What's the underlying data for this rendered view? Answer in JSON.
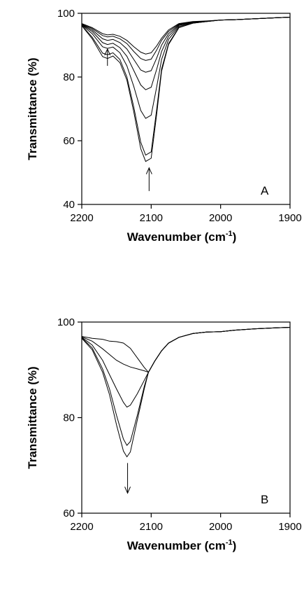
{
  "chart_data": [
    {
      "type": "line",
      "panel_label": "A",
      "xlabel_main": "Wavenumber (cm",
      "xlabel_sup": "-1",
      "xlabel_end": ")",
      "ylabel": "Transmittance (%)",
      "xlim": [
        2200,
        1900
      ],
      "ylim": [
        40,
        100
      ],
      "x_ticks": [
        2200,
        2100,
        2000,
        1900
      ],
      "y_ticks": [
        40,
        60,
        80,
        100
      ],
      "series": [
        {
          "x": [
            2200,
            2185,
            2170,
            2163,
            2155,
            2145,
            2135,
            2125,
            2115,
            2108,
            2100,
            2092,
            2085,
            2075,
            2060,
            2040,
            2020,
            2000,
            1980,
            1950,
            1920,
            1900
          ],
          "y": [
            96.8,
            95.5,
            93.6,
            93.2,
            93.4,
            92.8,
            91.5,
            89.5,
            87.8,
            87.2,
            87.6,
            89.8,
            92.2,
            94.8,
            96.8,
            97.4,
            97.6,
            97.9,
            98.0,
            98.3,
            98.6,
            98.8
          ]
        },
        {
          "x": [
            2200,
            2185,
            2170,
            2163,
            2155,
            2145,
            2135,
            2125,
            2115,
            2108,
            2100,
            2092,
            2085,
            2075,
            2060,
            2040,
            2020,
            2000,
            1980,
            1950,
            1920,
            1900
          ],
          "y": [
            96.6,
            95.2,
            93.0,
            92.6,
            92.8,
            92.0,
            90.5,
            88.0,
            85.8,
            85.2,
            85.6,
            88.5,
            91.5,
            94.3,
            96.6,
            97.3,
            97.5,
            97.9,
            98.0,
            98.3,
            98.6,
            98.8
          ]
        },
        {
          "x": [
            2200,
            2185,
            2170,
            2163,
            2155,
            2145,
            2135,
            2125,
            2115,
            2108,
            2100,
            2092,
            2085,
            2075,
            2060,
            2040,
            2020,
            2000,
            1980,
            1950,
            1920,
            1900
          ],
          "y": [
            96.5,
            94.8,
            92.0,
            91.5,
            91.8,
            90.8,
            88.8,
            85.5,
            82.2,
            81.5,
            82.0,
            86.0,
            90.0,
            93.6,
            96.4,
            97.2,
            97.5,
            97.9,
            98.0,
            98.3,
            98.6,
            98.8
          ]
        },
        {
          "x": [
            2200,
            2185,
            2170,
            2163,
            2155,
            2145,
            2135,
            2125,
            2115,
            2108,
            2100,
            2092,
            2085,
            2075,
            2060,
            2040,
            2020,
            2000,
            1980,
            1950,
            1920,
            1900
          ],
          "y": [
            96.4,
            94.3,
            90.8,
            90.2,
            90.6,
            89.2,
            86.5,
            82.0,
            77.5,
            76.0,
            76.8,
            82.5,
            88.0,
            92.8,
            96.2,
            97.1,
            97.5,
            97.9,
            98.0,
            98.3,
            98.6,
            98.8
          ]
        },
        {
          "x": [
            2200,
            2185,
            2170,
            2163,
            2155,
            2145,
            2135,
            2125,
            2115,
            2108,
            2100,
            2092,
            2085,
            2075,
            2060,
            2040,
            2020,
            2000,
            1980,
            1950,
            1920,
            1900
          ],
          "y": [
            96.3,
            93.6,
            89.5,
            89.0,
            89.4,
            87.6,
            83.5,
            77.0,
            69.5,
            67.0,
            68.0,
            77.0,
            85.5,
            91.8,
            95.9,
            97.0,
            97.4,
            97.9,
            98.0,
            98.3,
            98.6,
            98.8
          ]
        },
        {
          "x": [
            2200,
            2185,
            2170,
            2163,
            2155,
            2145,
            2135,
            2125,
            2115,
            2108,
            2100,
            2092,
            2085,
            2075,
            2060,
            2040,
            2020,
            2000,
            1980,
            1950,
            1920,
            1900
          ],
          "y": [
            96.2,
            92.5,
            87.5,
            87.0,
            87.6,
            85.5,
            80.0,
            70.5,
            59.5,
            55.5,
            56.5,
            70.0,
            82.5,
            90.5,
            95.6,
            96.9,
            97.4,
            97.9,
            98.0,
            98.3,
            98.6,
            98.8
          ]
        },
        {
          "x": [
            2200,
            2185,
            2170,
            2163,
            2155,
            2145,
            2135,
            2125,
            2115,
            2108,
            2100,
            2092,
            2085,
            2075,
            2060,
            2040,
            2020,
            2000,
            1980,
            1950,
            1920,
            1900
          ],
          "y": [
            96.1,
            92.0,
            86.4,
            85.8,
            86.6,
            84.5,
            79.0,
            69.0,
            57.5,
            53.5,
            54.5,
            68.5,
            81.8,
            90.2,
            95.5,
            96.9,
            97.4,
            97.9,
            98.0,
            98.3,
            98.6,
            98.8
          ]
        }
      ],
      "arrows": [
        {
          "x": 2163,
          "y_tail": 83.5,
          "y_head": 88.8,
          "direction": "up"
        },
        {
          "x": 2103,
          "y_tail": 44.2,
          "y_head": 51.5,
          "direction": "up"
        }
      ]
    },
    {
      "type": "line",
      "panel_label": "B",
      "xlabel_main": "Wavenumber (cm",
      "xlabel_sup": "-1",
      "xlabel_end": ")",
      "ylabel": "Transmittance (%)",
      "xlim": [
        2200,
        1900
      ],
      "ylim": [
        60,
        100
      ],
      "x_ticks": [
        2200,
        2100,
        2000,
        1900
      ],
      "y_ticks": [
        60,
        80,
        100
      ],
      "series": [
        {
          "x": [
            2200,
            2185,
            2170,
            2160,
            2150,
            2140,
            2130,
            2120,
            2110,
            2104,
            2095,
            2085,
            2075,
            2060,
            2040,
            2020,
            2000,
            1980,
            1950,
            1920,
            1900
          ],
          "y": [
            97.0,
            96.6,
            96.4,
            96.0,
            95.9,
            95.6,
            94.5,
            92.5,
            90.5,
            89.5,
            91.8,
            94.0,
            95.6,
            96.8,
            97.6,
            97.9,
            98.0,
            98.3,
            98.6,
            98.8,
            98.9
          ]
        },
        {
          "x": [
            2200,
            2185,
            2170,
            2160,
            2150,
            2140,
            2130,
            2120,
            2110,
            2104,
            2095,
            2085,
            2075,
            2060,
            2040,
            2020,
            2000,
            1980,
            1950,
            1920,
            1900
          ],
          "y": [
            96.9,
            96.0,
            94.4,
            93.2,
            92.0,
            91.2,
            90.6,
            90.2,
            89.8,
            89.5,
            91.8,
            94.0,
            95.6,
            96.8,
            97.6,
            97.9,
            98.0,
            98.3,
            98.6,
            98.8,
            98.9
          ]
        },
        {
          "x": [
            2200,
            2185,
            2170,
            2160,
            2150,
            2140,
            2135,
            2130,
            2120,
            2110,
            2104,
            2095,
            2085,
            2075,
            2060,
            2040,
            2020,
            2000,
            1980,
            1950,
            1920,
            1900
          ],
          "y": [
            96.8,
            95.2,
            92.0,
            89.0,
            86.0,
            83.2,
            82.2,
            82.6,
            85.0,
            87.8,
            89.5,
            91.8,
            94.0,
            95.6,
            96.8,
            97.6,
            97.9,
            98.0,
            98.3,
            98.6,
            98.8,
            98.9
          ]
        },
        {
          "x": [
            2200,
            2185,
            2170,
            2160,
            2150,
            2140,
            2135,
            2130,
            2120,
            2110,
            2104,
            2095,
            2085,
            2075,
            2060,
            2040,
            2020,
            2000,
            1980,
            1950,
            1920,
            1900
          ],
          "y": [
            96.7,
            94.6,
            90.2,
            86.0,
            80.5,
            75.5,
            74.2,
            75.0,
            80.5,
            86.5,
            89.5,
            91.8,
            94.0,
            95.6,
            96.8,
            97.6,
            97.9,
            98.0,
            98.3,
            98.6,
            98.8,
            98.9
          ]
        },
        {
          "x": [
            2200,
            2185,
            2170,
            2160,
            2150,
            2140,
            2135,
            2130,
            2120,
            2110,
            2104,
            2095,
            2085,
            2075,
            2060,
            2040,
            2020,
            2000,
            1980,
            1950,
            1920,
            1900
          ],
          "y": [
            96.6,
            94.2,
            89.5,
            84.8,
            78.5,
            73.0,
            71.8,
            72.8,
            79.5,
            86.0,
            89.5,
            91.8,
            94.0,
            95.6,
            96.8,
            97.6,
            97.9,
            98.0,
            98.3,
            98.6,
            98.8,
            98.9
          ]
        }
      ],
      "arrows": [
        {
          "x": 2134,
          "y_tail": 70.5,
          "y_head": 64.2,
          "direction": "down"
        }
      ]
    }
  ]
}
